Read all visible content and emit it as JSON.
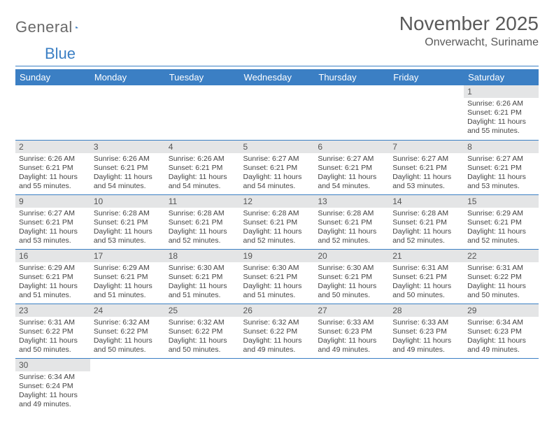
{
  "logo": {
    "word1": "General",
    "word2": "Blue"
  },
  "header": {
    "title": "November 2025",
    "location": "Onverwacht, Suriname"
  },
  "colors": {
    "accent": "#3b7fc4",
    "header_bg": "#3b7fc4",
    "daynum_bg": "#e4e5e6",
    "text": "#404040",
    "rule": "#3b7fc4"
  },
  "calendar": {
    "day_headers": [
      "Sunday",
      "Monday",
      "Tuesday",
      "Wednesday",
      "Thursday",
      "Friday",
      "Saturday"
    ],
    "weeks": [
      [
        null,
        null,
        null,
        null,
        null,
        null,
        {
          "n": "1",
          "sunrise": "Sunrise: 6:26 AM",
          "sunset": "Sunset: 6:21 PM",
          "daylight": "Daylight: 11 hours and 55 minutes."
        }
      ],
      [
        {
          "n": "2",
          "sunrise": "Sunrise: 6:26 AM",
          "sunset": "Sunset: 6:21 PM",
          "daylight": "Daylight: 11 hours and 55 minutes."
        },
        {
          "n": "3",
          "sunrise": "Sunrise: 6:26 AM",
          "sunset": "Sunset: 6:21 PM",
          "daylight": "Daylight: 11 hours and 54 minutes."
        },
        {
          "n": "4",
          "sunrise": "Sunrise: 6:26 AM",
          "sunset": "Sunset: 6:21 PM",
          "daylight": "Daylight: 11 hours and 54 minutes."
        },
        {
          "n": "5",
          "sunrise": "Sunrise: 6:27 AM",
          "sunset": "Sunset: 6:21 PM",
          "daylight": "Daylight: 11 hours and 54 minutes."
        },
        {
          "n": "6",
          "sunrise": "Sunrise: 6:27 AM",
          "sunset": "Sunset: 6:21 PM",
          "daylight": "Daylight: 11 hours and 54 minutes."
        },
        {
          "n": "7",
          "sunrise": "Sunrise: 6:27 AM",
          "sunset": "Sunset: 6:21 PM",
          "daylight": "Daylight: 11 hours and 53 minutes."
        },
        {
          "n": "8",
          "sunrise": "Sunrise: 6:27 AM",
          "sunset": "Sunset: 6:21 PM",
          "daylight": "Daylight: 11 hours and 53 minutes."
        }
      ],
      [
        {
          "n": "9",
          "sunrise": "Sunrise: 6:27 AM",
          "sunset": "Sunset: 6:21 PM",
          "daylight": "Daylight: 11 hours and 53 minutes."
        },
        {
          "n": "10",
          "sunrise": "Sunrise: 6:28 AM",
          "sunset": "Sunset: 6:21 PM",
          "daylight": "Daylight: 11 hours and 53 minutes."
        },
        {
          "n": "11",
          "sunrise": "Sunrise: 6:28 AM",
          "sunset": "Sunset: 6:21 PM",
          "daylight": "Daylight: 11 hours and 52 minutes."
        },
        {
          "n": "12",
          "sunrise": "Sunrise: 6:28 AM",
          "sunset": "Sunset: 6:21 PM",
          "daylight": "Daylight: 11 hours and 52 minutes."
        },
        {
          "n": "13",
          "sunrise": "Sunrise: 6:28 AM",
          "sunset": "Sunset: 6:21 PM",
          "daylight": "Daylight: 11 hours and 52 minutes."
        },
        {
          "n": "14",
          "sunrise": "Sunrise: 6:28 AM",
          "sunset": "Sunset: 6:21 PM",
          "daylight": "Daylight: 11 hours and 52 minutes."
        },
        {
          "n": "15",
          "sunrise": "Sunrise: 6:29 AM",
          "sunset": "Sunset: 6:21 PM",
          "daylight": "Daylight: 11 hours and 52 minutes."
        }
      ],
      [
        {
          "n": "16",
          "sunrise": "Sunrise: 6:29 AM",
          "sunset": "Sunset: 6:21 PM",
          "daylight": "Daylight: 11 hours and 51 minutes."
        },
        {
          "n": "17",
          "sunrise": "Sunrise: 6:29 AM",
          "sunset": "Sunset: 6:21 PM",
          "daylight": "Daylight: 11 hours and 51 minutes."
        },
        {
          "n": "18",
          "sunrise": "Sunrise: 6:30 AM",
          "sunset": "Sunset: 6:21 PM",
          "daylight": "Daylight: 11 hours and 51 minutes."
        },
        {
          "n": "19",
          "sunrise": "Sunrise: 6:30 AM",
          "sunset": "Sunset: 6:21 PM",
          "daylight": "Daylight: 11 hours and 51 minutes."
        },
        {
          "n": "20",
          "sunrise": "Sunrise: 6:30 AM",
          "sunset": "Sunset: 6:21 PM",
          "daylight": "Daylight: 11 hours and 50 minutes."
        },
        {
          "n": "21",
          "sunrise": "Sunrise: 6:31 AM",
          "sunset": "Sunset: 6:21 PM",
          "daylight": "Daylight: 11 hours and 50 minutes."
        },
        {
          "n": "22",
          "sunrise": "Sunrise: 6:31 AM",
          "sunset": "Sunset: 6:22 PM",
          "daylight": "Daylight: 11 hours and 50 minutes."
        }
      ],
      [
        {
          "n": "23",
          "sunrise": "Sunrise: 6:31 AM",
          "sunset": "Sunset: 6:22 PM",
          "daylight": "Daylight: 11 hours and 50 minutes."
        },
        {
          "n": "24",
          "sunrise": "Sunrise: 6:32 AM",
          "sunset": "Sunset: 6:22 PM",
          "daylight": "Daylight: 11 hours and 50 minutes."
        },
        {
          "n": "25",
          "sunrise": "Sunrise: 6:32 AM",
          "sunset": "Sunset: 6:22 PM",
          "daylight": "Daylight: 11 hours and 50 minutes."
        },
        {
          "n": "26",
          "sunrise": "Sunrise: 6:32 AM",
          "sunset": "Sunset: 6:22 PM",
          "daylight": "Daylight: 11 hours and 49 minutes."
        },
        {
          "n": "27",
          "sunrise": "Sunrise: 6:33 AM",
          "sunset": "Sunset: 6:23 PM",
          "daylight": "Daylight: 11 hours and 49 minutes."
        },
        {
          "n": "28",
          "sunrise": "Sunrise: 6:33 AM",
          "sunset": "Sunset: 6:23 PM",
          "daylight": "Daylight: 11 hours and 49 minutes."
        },
        {
          "n": "29",
          "sunrise": "Sunrise: 6:34 AM",
          "sunset": "Sunset: 6:23 PM",
          "daylight": "Daylight: 11 hours and 49 minutes."
        }
      ],
      [
        {
          "n": "30",
          "sunrise": "Sunrise: 6:34 AM",
          "sunset": "Sunset: 6:24 PM",
          "daylight": "Daylight: 11 hours and 49 minutes."
        },
        null,
        null,
        null,
        null,
        null,
        null
      ]
    ]
  }
}
